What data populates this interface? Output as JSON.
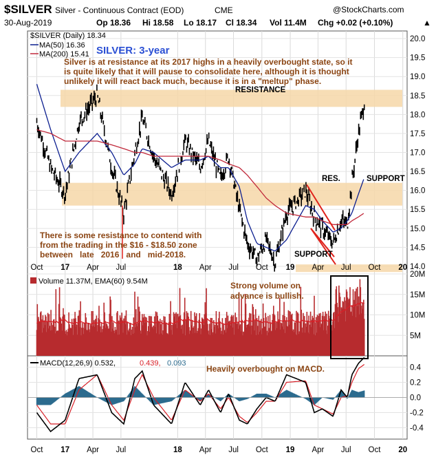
{
  "header": {
    "symbol": "$SILVER",
    "description": "Silver - Continuous Contract (EOD)",
    "exchange": "CME",
    "brand": "@StockCharts.com",
    "date": "30-Aug-2019",
    "open": "Op 18.36",
    "high": "Hi 18.58",
    "low": "Lo 18.17",
    "close": "Cl 18.34",
    "volume": "Vol 11.4M",
    "change": "Chg +0.02 (+0.10%)",
    "change_arrow": "▲"
  },
  "annotations": {
    "title": "SILVER: 3-year",
    "main_comment": [
      "Silver is at resistance at its 2017 highs in a heavily overbought state, so it",
      "is quite likely that it will pause to consolidate here, although it is thought",
      "unlikely it will react back much, because it is in a \"meltup\" phase."
    ],
    "resistance_label": "RESISTANCE",
    "res_label": "RES.",
    "support_label": "SUPPORT",
    "support_label_2": "SUPPORT",
    "zone_comment": [
      "There is some resistance to contend with",
      "from the trading in the $16 - $18.50 zone",
      "between   late   2016   and   mid-2018."
    ],
    "volume_comment": [
      "Strong volume on",
      "advance is bullish."
    ],
    "macd_comment": "Heavily overbought on MACD."
  },
  "colors": {
    "ma50": "#0b1e8f",
    "ma200": "#c0283a",
    "price": "#000000",
    "zone": "#f6d7a8",
    "volume_bar": "#b72b2e",
    "volume_ema": "#d81f26",
    "macd_line": "#000000",
    "macd_signal": "#d81f26",
    "histogram": "#2c6b8e",
    "annotation": "#8b4513",
    "red_lines": "#e0231c"
  },
  "chart_data": [
    {
      "type": "line",
      "panel": "price",
      "legend": [
        "$SILVER (Daily) 18.34",
        "MA(50) 16.36",
        "MA(200) 15.41"
      ],
      "x_ticks": [
        "Oct",
        "17",
        "Apr",
        "Jul",
        "18",
        "Apr",
        "Jul",
        "Oct",
        "19",
        "Apr",
        "Jul",
        "Oct",
        "20"
      ],
      "y_ticks": [
        "20.0",
        "19.5",
        "19.0",
        "18.5",
        "18.0",
        "17.5",
        "17.0",
        "16.5",
        "16.0",
        "15.5",
        "15.0",
        "14.5",
        "14.0"
      ],
      "ylim": [
        13.8,
        20.2
      ],
      "x": [
        "2016-10-01",
        "2016-11-15",
        "2017-01-01",
        "2017-02-15",
        "2017-04-15",
        "2017-06-01",
        "2017-07-10",
        "2017-08-15",
        "2017-09-08",
        "2017-10-15",
        "2017-12-12",
        "2018-01-25",
        "2018-03-15",
        "2018-04-11",
        "2018-05-20",
        "2018-06-15",
        "2018-07-20",
        "2018-08-15",
        "2018-09-15",
        "2018-10-15",
        "2018-11-13",
        "2018-12-20",
        "2019-02-20",
        "2019-03-20",
        "2019-04-15",
        "2019-05-20",
        "2019-06-15",
        "2019-07-05",
        "2019-07-20",
        "2019-08-10",
        "2019-08-30"
      ],
      "series": [
        {
          "values": [
            17.8,
            16.6,
            15.9,
            17.8,
            18.5,
            16.6,
            15.4,
            17.0,
            17.9,
            16.9,
            15.9,
            17.3,
            16.6,
            17.3,
            16.3,
            16.9,
            15.5,
            14.6,
            14.2,
            14.7,
            14.1,
            15.4,
            16.0,
            15.3,
            15.0,
            14.6,
            15.2,
            15.1,
            16.2,
            17.5,
            18.34
          ]
        },
        {
          "name": "MA(50)",
          "values": [
            18.8,
            17.6,
            16.5,
            17.0,
            17.5,
            17.0,
            16.4,
            16.7,
            17.1,
            17.0,
            16.6,
            16.8,
            16.8,
            16.9,
            16.6,
            16.6,
            16.1,
            15.2,
            14.6,
            14.5,
            14.4,
            14.7,
            15.6,
            15.5,
            15.2,
            14.9,
            15.0,
            15.2,
            15.4,
            15.9,
            16.36
          ]
        },
        {
          "name": "MA(200)",
          "values": [
            17.6,
            17.5,
            17.3,
            17.3,
            17.3,
            17.2,
            17.1,
            17.0,
            17.0,
            16.9,
            16.9,
            16.9,
            16.9,
            16.9,
            16.8,
            16.7,
            16.6,
            16.4,
            16.1,
            15.8,
            15.6,
            15.4,
            15.3,
            15.3,
            15.2,
            15.1,
            15.1,
            15.1,
            15.2,
            15.3,
            15.41
          ]
        }
      ],
      "zones": [
        {
          "label": "RESISTANCE",
          "range": [
            18.2,
            18.65
          ]
        },
        {
          "label": "SUPPORT",
          "range": [
            15.6,
            16.2
          ]
        },
        {
          "label": "SUPPORT",
          "range": [
            13.85,
            14.05
          ]
        }
      ]
    },
    {
      "type": "bar",
      "panel": "volume",
      "legend": "Volume 11.37M, EMA(60) 9.54M",
      "y_ticks": [
        "20M",
        "15M",
        "10M",
        "5M"
      ],
      "ylim": [
        0,
        20
      ],
      "unit": "M"
    },
    {
      "type": "line",
      "panel": "macd",
      "legend": [
        "MACD(12,26,9) 0.532,",
        "0.439,",
        "0.093"
      ],
      "y_ticks": [
        "0.4",
        "0.2",
        "0.0",
        "-0.2",
        "-0.4"
      ],
      "ylim": [
        -0.55,
        0.55
      ],
      "x": [
        "2016-10-01",
        "2016-11-15",
        "2017-01-01",
        "2017-02-15",
        "2017-04-15",
        "2017-06-01",
        "2017-07-10",
        "2017-08-15",
        "2017-09-08",
        "2017-10-15",
        "2017-12-12",
        "2018-01-25",
        "2018-03-15",
        "2018-04-11",
        "2018-05-20",
        "2018-06-15",
        "2018-07-20",
        "2018-08-15",
        "2018-09-15",
        "2018-10-15",
        "2018-11-13",
        "2018-12-20",
        "2019-02-20",
        "2019-03-20",
        "2019-04-15",
        "2019-05-20",
        "2019-06-15",
        "2019-07-05",
        "2019-07-20",
        "2019-08-10",
        "2019-08-30"
      ],
      "series": [
        {
          "name": "MACD",
          "values": [
            -0.2,
            -0.45,
            -0.3,
            0.25,
            0.3,
            -0.2,
            -0.35,
            0.25,
            0.35,
            -0.1,
            -0.35,
            0.2,
            -0.1,
            0.1,
            -0.2,
            0.05,
            -0.3,
            -0.35,
            -0.15,
            0.0,
            -0.05,
            0.3,
            0.2,
            -0.2,
            -0.15,
            -0.25,
            0.1,
            0.0,
            0.3,
            0.45,
            0.532
          ]
        },
        {
          "name": "Signal",
          "values": [
            -0.1,
            -0.35,
            -0.35,
            0.1,
            0.3,
            -0.1,
            -0.3,
            0.1,
            0.3,
            0.0,
            -0.3,
            0.1,
            -0.05,
            0.05,
            -0.15,
            0.0,
            -0.25,
            -0.33,
            -0.2,
            -0.05,
            -0.05,
            0.2,
            0.22,
            -0.1,
            -0.15,
            -0.22,
            0.0,
            0.02,
            0.2,
            0.38,
            0.439
          ]
        },
        {
          "name": "Histogram",
          "values": [
            -0.1,
            -0.1,
            0.05,
            0.15,
            0.0,
            -0.1,
            -0.05,
            0.15,
            0.05,
            -0.1,
            -0.05,
            0.1,
            -0.05,
            0.05,
            -0.05,
            0.05,
            -0.05,
            -0.02,
            0.05,
            0.05,
            0.0,
            0.1,
            -0.02,
            -0.1,
            0.0,
            -0.03,
            0.1,
            -0.02,
            0.1,
            0.07,
            0.093
          ]
        }
      ]
    }
  ]
}
